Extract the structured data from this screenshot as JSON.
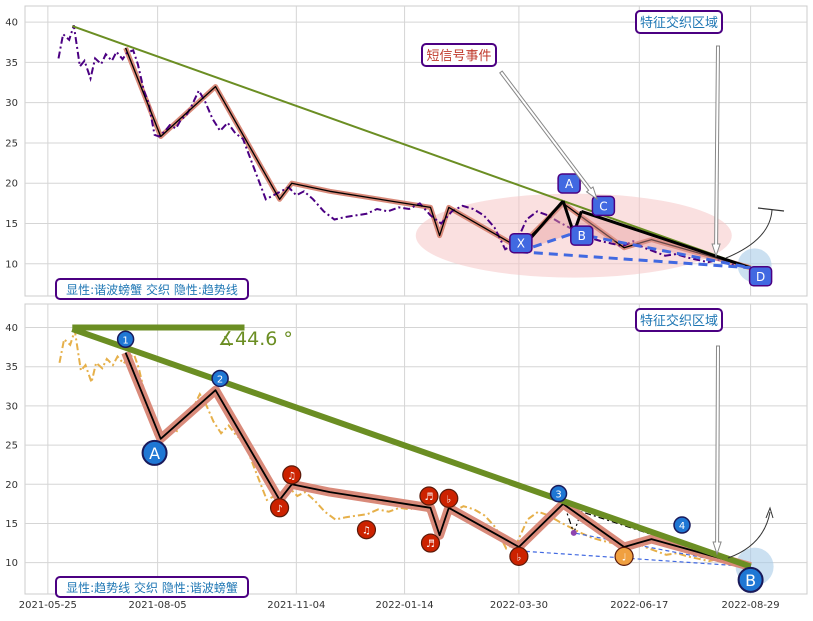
{
  "chart_data": [
    {
      "type": "line",
      "panel": "top",
      "ylim": [
        6,
        42
      ],
      "yticks": [
        10,
        15,
        20,
        25,
        30,
        35,
        40
      ],
      "grid": true,
      "price_series": {
        "color": "#4b0082",
        "style": "dash-dot",
        "x": [
          "2021-06-01",
          "2021-06-04",
          "2021-06-08",
          "2021-06-11",
          "2021-06-15",
          "2021-06-18",
          "2021-06-22",
          "2021-06-25",
          "2021-06-29",
          "2021-07-02",
          "2021-07-06",
          "2021-07-09",
          "2021-07-13",
          "2021-07-16",
          "2021-07-20",
          "2021-07-23",
          "2021-07-27",
          "2021-07-30",
          "2021-08-03",
          "2021-08-06",
          "2021-08-10",
          "2021-08-13",
          "2021-08-17",
          "2021-08-20",
          "2021-08-24",
          "2021-08-27",
          "2021-09-01",
          "2021-09-05",
          "2021-09-10",
          "2021-09-15",
          "2021-09-20",
          "2021-09-25",
          "2021-09-30",
          "2021-10-05",
          "2021-10-10",
          "2021-10-15",
          "2021-10-20",
          "2021-10-25",
          "2021-10-30",
          "2021-11-04",
          "2021-11-09",
          "2021-11-15",
          "2021-11-22",
          "2021-11-29",
          "2021-12-06",
          "2021-12-13",
          "2021-12-20",
          "2021-12-27",
          "2022-01-03",
          "2022-01-10",
          "2022-01-17",
          "2022-01-24",
          "2022-01-31",
          "2022-02-07",
          "2022-02-14",
          "2022-02-21",
          "2022-02-28",
          "2022-03-07",
          "2022-03-14",
          "2022-03-21",
          "2022-03-28",
          "2022-04-04",
          "2022-04-11",
          "2022-04-18",
          "2022-04-25",
          "2022-05-02",
          "2022-05-09",
          "2022-05-16",
          "2022-05-23",
          "2022-05-30",
          "2022-06-06",
          "2022-06-13",
          "2022-06-20",
          "2022-06-27",
          "2022-07-04",
          "2022-07-11",
          "2022-07-18",
          "2022-07-25",
          "2022-08-01",
          "2022-08-08",
          "2022-08-15",
          "2022-08-22",
          "2022-08-29"
        ],
        "y": [
          35.5,
          38.5,
          37.8,
          39.6,
          34.5,
          35.2,
          33.0,
          35.5,
          34.8,
          36.0,
          35.2,
          36.3,
          35.4,
          36.2,
          36.5,
          34.8,
          31.5,
          30.0,
          26.0,
          25.8,
          26.5,
          27.2,
          26.8,
          27.8,
          28.5,
          29.5,
          31.5,
          30.2,
          28.0,
          26.5,
          27.5,
          26.2,
          25.5,
          23.0,
          20.5,
          18.0,
          18.5,
          19.0,
          19.5,
          18.5,
          19.0,
          18.0,
          16.5,
          15.5,
          15.8,
          16.0,
          16.2,
          16.8,
          16.5,
          17.0,
          16.8,
          17.5,
          16.0,
          15.0,
          16.5,
          17.2,
          16.8,
          16.0,
          14.5,
          11.8,
          12.5,
          15.5,
          16.5,
          16.0,
          15.2,
          14.5,
          13.8,
          13.2,
          12.8,
          12.5,
          12.2,
          12.8,
          12.0,
          11.5,
          11.0,
          11.2,
          10.8,
          10.5,
          10.2,
          10.5,
          10.0,
          9.8,
          9.5
        ]
      },
      "wave_series": {
        "color": "#000000",
        "band_color": "#d98a7a",
        "x": [
          "2021-07-15",
          "2021-08-07",
          "2021-09-12",
          "2021-10-24",
          "2021-11-01",
          "2021-11-26",
          "2022-01-31",
          "2022-02-06",
          "2022-02-12",
          "2022-03-30",
          "2022-04-28",
          "2022-06-07",
          "2022-06-25",
          "2022-08-29"
        ],
        "y": [
          36.8,
          25.8,
          32.0,
          18.0,
          20.0,
          19.0,
          17.0,
          13.5,
          17.0,
          12.0,
          17.5,
          12.0,
          13.0,
          9.5
        ]
      },
      "trend_line": {
        "color": "#6b8e23",
        "x": [
          "2021-06-10",
          "2022-08-29"
        ],
        "y": [
          39.5,
          9.5
        ]
      },
      "zone_ellipse": {
        "center": [
          "2022-05-05",
          13.5
        ],
        "color": "#f5c6c6"
      },
      "xabcd": {
        "color": "#4169e1",
        "points": [
          {
            "label": "X",
            "x": "2022-03-30",
            "y": 11.5
          },
          {
            "label": "A",
            "x": "2022-04-28",
            "y": 17.8
          },
          {
            "label": "B",
            "x": "2022-05-05",
            "y": 13.8
          },
          {
            "label": "C",
            "x": "2022-05-10",
            "y": 16.5
          },
          {
            "label": "D",
            "x": "2022-08-29",
            "y": 9.5
          }
        ]
      },
      "annotations": {
        "short_signal": "短信号事件",
        "feature_zone": "特征交织区域",
        "legend_box": "显性:谐波螃蟹 交织 隐性:趋势线"
      }
    },
    {
      "type": "line",
      "panel": "bottom",
      "ylim": [
        6,
        43
      ],
      "yticks": [
        10,
        15,
        20,
        25,
        30,
        35,
        40
      ],
      "xticks": [
        "2021-05-25",
        "2021-08-05",
        "2021-11-04",
        "2022-01-14",
        "2022-03-30",
        "2022-06-17",
        "2022-08-29"
      ],
      "grid": true,
      "price_series": {
        "color": "#e6b04a",
        "style": "dash-dot"
      },
      "wave_series": {
        "color": "#000000",
        "band_color": "#d98a7a"
      },
      "trend_line": {
        "color": "#6b8e23",
        "x": [
          "2021-06-10",
          "2022-08-29"
        ],
        "y": [
          39.8,
          9.5
        ]
      },
      "horizontal_line": {
        "color": "#6b8e23",
        "x": [
          "2021-06-10",
          "2021-10-01"
        ],
        "y": [
          40.0,
          40.0
        ]
      },
      "angle_label": "∡44.6 °",
      "numbered_points": [
        {
          "label": "1",
          "x": "2021-07-15",
          "y": 38.5
        },
        {
          "label": "2",
          "x": "2021-09-15",
          "y": 33.5
        },
        {
          "label": "3",
          "x": "2022-04-25",
          "y": 18.8
        },
        {
          "label": "4",
          "x": "2022-07-15",
          "y": 14.8
        }
      ],
      "letter_points": [
        {
          "label": "A",
          "x": "2021-08-03",
          "y": 24.0
        },
        {
          "label": "B",
          "x": "2022-08-29",
          "y": 7.8
        }
      ],
      "note_points": [
        {
          "symbol": "♪",
          "x": "2021-10-24",
          "y": 17.0
        },
        {
          "symbol": "♫",
          "x": "2021-11-01",
          "y": 21.2
        },
        {
          "symbol": "♫",
          "x": "2021-12-20",
          "y": 14.2
        },
        {
          "symbol": "♬",
          "x": "2022-01-30",
          "y": 18.5
        },
        {
          "symbol": "♬",
          "x": "2022-01-31",
          "y": 12.5
        },
        {
          "symbol": "♭",
          "x": "2022-02-12",
          "y": 18.2
        },
        {
          "symbol": "♭",
          "x": "2022-03-30",
          "y": 10.8
        },
        {
          "symbol": "♩",
          "x": "2022-06-07",
          "y": 10.8
        }
      ],
      "annotations": {
        "feature_zone": "特征交织区域",
        "legend_box": "显性:趋势线 交织 隐性:谐波螃蟹"
      }
    }
  ]
}
